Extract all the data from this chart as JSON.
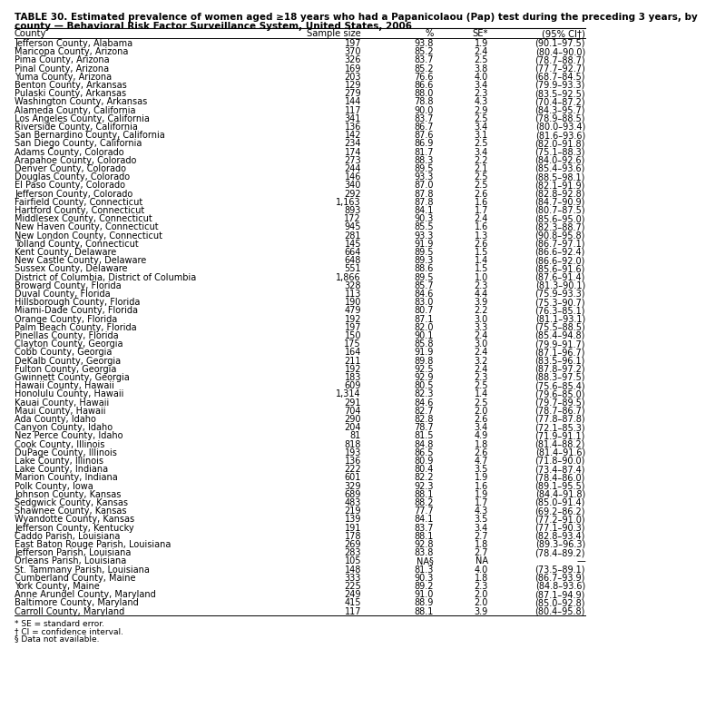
{
  "title_line1": "TABLE 30. Estimated prevalence of women aged ≥18 years who had a Papanicolaou (Pap) test during the preceding 3 years, by",
  "title_line2": "county — Behavioral Risk Factor Surveillance System, United States, 2006",
  "col_headers": [
    "County",
    "Sample size",
    "%",
    "SE*",
    "(95% CI†)"
  ],
  "rows": [
    [
      "Jefferson County, Alabama",
      "197",
      "93.8",
      "1.9",
      "(90.1–97.5)"
    ],
    [
      "Maricopa County, Arizona",
      "370",
      "85.2",
      "2.4",
      "(80.4–90.0)"
    ],
    [
      "Pima County, Arizona",
      "326",
      "83.7",
      "2.5",
      "(78.7–88.7)"
    ],
    [
      "Pinal County, Arizona",
      "169",
      "85.2",
      "3.8",
      "(77.7–92.7)"
    ],
    [
      "Yuma County, Arizona",
      "203",
      "76.6",
      "4.0",
      "(68.7–84.5)"
    ],
    [
      "Benton County, Arkansas",
      "129",
      "86.6",
      "3.4",
      "(79.9–93.3)"
    ],
    [
      "Pulaski County, Arkansas",
      "279",
      "88.0",
      "2.3",
      "(83.5–92.5)"
    ],
    [
      "Washington County, Arkansas",
      "144",
      "78.8",
      "4.3",
      "(70.4–87.2)"
    ],
    [
      "Alameda County, California",
      "117",
      "90.0",
      "2.9",
      "(84.3–95.7)"
    ],
    [
      "Los Angeles County, California",
      "341",
      "83.7",
      "2.5",
      "(78.9–88.5)"
    ],
    [
      "Riverside County, California",
      "136",
      "86.7",
      "3.4",
      "(80.0–93.4)"
    ],
    [
      "San Bernardino County, California",
      "142",
      "87.6",
      "3.1",
      "(81.6–93.6)"
    ],
    [
      "San Diego County, California",
      "234",
      "86.9",
      "2.5",
      "(82.0–91.8)"
    ],
    [
      "Adams County, Colorado",
      "174",
      "81.7",
      "3.4",
      "(75.1–88.3)"
    ],
    [
      "Arapahoe County, Colorado",
      "273",
      "88.3",
      "2.2",
      "(84.0–92.6)"
    ],
    [
      "Denver County, Colorado",
      "244",
      "89.5",
      "2.1",
      "(85.4–93.6)"
    ],
    [
      "Douglas County, Colorado",
      "146",
      "93.3",
      "2.5",
      "(88.5–98.1)"
    ],
    [
      "El Paso County, Colorado",
      "340",
      "87.0",
      "2.5",
      "(82.1–91.9)"
    ],
    [
      "Jefferson County, Colorado",
      "292",
      "87.8",
      "2.6",
      "(82.8–92.8)"
    ],
    [
      "Fairfield County, Connecticut",
      "1,163",
      "87.8",
      "1.6",
      "(84.7–90.9)"
    ],
    [
      "Hartford County, Connecticut",
      "893",
      "84.1",
      "1.7",
      "(80.7–87.5)"
    ],
    [
      "Middlesex County, Connecticut",
      "172",
      "90.3",
      "2.4",
      "(85.6–95.0)"
    ],
    [
      "New Haven County, Connecticut",
      "945",
      "85.5",
      "1.6",
      "(82.3–88.7)"
    ],
    [
      "New London County, Connecticut",
      "281",
      "93.3",
      "1.3",
      "(90.8–95.8)"
    ],
    [
      "Tolland County, Connecticut",
      "145",
      "91.9",
      "2.6",
      "(86.7–97.1)"
    ],
    [
      "Kent County, Delaware",
      "664",
      "89.5",
      "1.5",
      "(86.6–92.4)"
    ],
    [
      "New Castle County, Delaware",
      "648",
      "89.3",
      "1.4",
      "(86.6–92.0)"
    ],
    [
      "Sussex County, Delaware",
      "551",
      "88.6",
      "1.5",
      "(85.6–91.6)"
    ],
    [
      "District of Columbia, District of Columbia",
      "1,866",
      "89.5",
      "1.0",
      "(87.6–91.4)"
    ],
    [
      "Broward County, Florida",
      "328",
      "85.7",
      "2.3",
      "(81.3–90.1)"
    ],
    [
      "Duval County, Florida",
      "113",
      "84.6",
      "4.4",
      "(75.9–93.3)"
    ],
    [
      "Hillsborough County, Florida",
      "190",
      "83.0",
      "3.9",
      "(75.3–90.7)"
    ],
    [
      "Miami-Dade County, Florida",
      "479",
      "80.7",
      "2.2",
      "(76.3–85.1)"
    ],
    [
      "Orange County, Florida",
      "192",
      "87.1",
      "3.0",
      "(81.1–93.1)"
    ],
    [
      "Palm Beach County, Florida",
      "197",
      "82.0",
      "3.3",
      "(75.5–88.5)"
    ],
    [
      "Pinellas County, Florida",
      "150",
      "90.1",
      "2.4",
      "(85.4–94.8)"
    ],
    [
      "Clayton County, Georgia",
      "175",
      "85.8",
      "3.0",
      "(79.9–91.7)"
    ],
    [
      "Cobb County, Georgia",
      "164",
      "91.9",
      "2.4",
      "(87.1–96.7)"
    ],
    [
      "DeKalb County, Georgia",
      "211",
      "89.8",
      "3.2",
      "(83.5–96.1)"
    ],
    [
      "Fulton County, Georgia",
      "192",
      "92.5",
      "2.4",
      "(87.8–97.2)"
    ],
    [
      "Gwinnett County, Georgia",
      "183",
      "92.9",
      "2.3",
      "(88.3–97.5)"
    ],
    [
      "Hawaii County, Hawaii",
      "609",
      "80.5",
      "2.5",
      "(75.6–85.4)"
    ],
    [
      "Honolulu County, Hawaii",
      "1,314",
      "82.3",
      "1.4",
      "(79.6–85.0)"
    ],
    [
      "Kauai County, Hawaii",
      "291",
      "84.6",
      "2.5",
      "(79.7–89.5)"
    ],
    [
      "Maui County, Hawaii",
      "704",
      "82.7",
      "2.0",
      "(78.7–86.7)"
    ],
    [
      "Ada County, Idaho",
      "290",
      "82.8",
      "2.6",
      "(77.8–87.8)"
    ],
    [
      "Canyon County, Idaho",
      "204",
      "78.7",
      "3.4",
      "(72.1–85.3)"
    ],
    [
      "Nez Perce County, Idaho",
      "81",
      "81.5",
      "4.9",
      "(71.9–91.1)"
    ],
    [
      "Cook County, Illinois",
      "818",
      "84.8",
      "1.8",
      "(81.4–88.2)"
    ],
    [
      "DuPage County, Illinois",
      "193",
      "86.5",
      "2.6",
      "(81.4–91.6)"
    ],
    [
      "Lake County, Illinois",
      "136",
      "80.9",
      "4.7",
      "(71.8–90.0)"
    ],
    [
      "Lake County, Indiana",
      "222",
      "80.4",
      "3.5",
      "(73.4–87.4)"
    ],
    [
      "Marion County, Indiana",
      "601",
      "82.2",
      "1.9",
      "(78.4–86.0)"
    ],
    [
      "Polk County, Iowa",
      "329",
      "92.3",
      "1.6",
      "(89.1–95.5)"
    ],
    [
      "Johnson County, Kansas",
      "689",
      "88.1",
      "1.9",
      "(84.4–91.8)"
    ],
    [
      "Sedgwick County, Kansas",
      "483",
      "88.2",
      "1.7",
      "(85.0–91.4)"
    ],
    [
      "Shawnee County, Kansas",
      "219",
      "77.7",
      "4.3",
      "(69.2–86.2)"
    ],
    [
      "Wyandotte County, Kansas",
      "139",
      "84.1",
      "3.5",
      "(77.2–91.0)"
    ],
    [
      "Jefferson County, Kentucky",
      "191",
      "83.7",
      "3.4",
      "(77.1–90.3)"
    ],
    [
      "Caddo Parish, Louisiana",
      "178",
      "88.1",
      "2.7",
      "(82.8–93.4)"
    ],
    [
      "East Baton Rouge Parish, Louisiana",
      "269",
      "92.8",
      "1.8",
      "(89.3–96.3)"
    ],
    [
      "Jefferson Parish, Louisiana",
      "283",
      "83.8",
      "2.7",
      "(78.4–89.2)"
    ],
    [
      "Orleans Parish, Louisiana",
      "105",
      "NA§",
      "NA",
      "—"
    ],
    [
      "St. Tammany Parish, Louisiana",
      "148",
      "81.3",
      "4.0",
      "(73.5–89.1)"
    ],
    [
      "Cumberland County, Maine",
      "333",
      "90.3",
      "1.8",
      "(86.7–93.9)"
    ],
    [
      "York County, Maine",
      "225",
      "89.2",
      "2.3",
      "(84.8–93.6)"
    ],
    [
      "Anne Arundel County, Maryland",
      "249",
      "91.0",
      "2.0",
      "(87.1–94.9)"
    ],
    [
      "Baltimore County, Maryland",
      "415",
      "88.9",
      "2.0",
      "(85.0–92.8)"
    ],
    [
      "Carroll County, Maryland",
      "117",
      "88.1",
      "3.9",
      "(80.4–95.8)"
    ]
  ],
  "footnotes": [
    "* SE = standard error.",
    "† CI = confidence interval.",
    "§ Data not available."
  ],
  "bg_color": "#ffffff",
  "title_fontsize": 7.5,
  "header_fontsize": 7.2,
  "data_fontsize": 7.0,
  "footnote_fontsize": 6.5
}
